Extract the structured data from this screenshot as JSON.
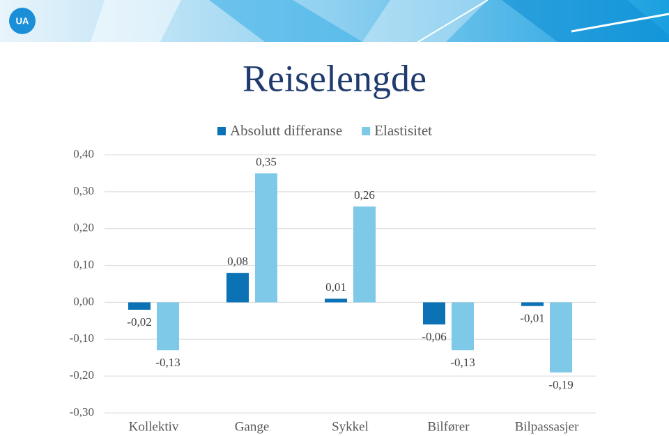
{
  "logo": "UA",
  "chart_data": {
    "type": "bar",
    "title": "Reiselengde",
    "categories": [
      "Kollektiv",
      "Gange",
      "Sykkel",
      "Bilfører",
      "Bilpassasjer"
    ],
    "series": [
      {
        "name": "Absolutt differanse",
        "color": "#0b72b5",
        "values": [
          -0.02,
          0.08,
          0.01,
          -0.06,
          -0.01
        ],
        "value_labels": [
          "-0,02",
          "0,08",
          "0,01",
          "-0,06",
          "-0,01"
        ]
      },
      {
        "name": "Elastisitet",
        "color": "#7dc9e7",
        "values": [
          -0.13,
          0.35,
          0.26,
          -0.13,
          -0.19
        ],
        "value_labels": [
          "-0,13",
          "0,35",
          "0,26",
          "-0,13",
          "-0,19"
        ]
      }
    ],
    "ylim": [
      -0.3,
      0.4
    ],
    "yticks": [
      {
        "value": -0.3,
        "label": "-0,30"
      },
      {
        "value": -0.2,
        "label": "-0,20"
      },
      {
        "value": -0.1,
        "label": "-0,10"
      },
      {
        "value": 0,
        "label": "0,00"
      },
      {
        "value": 0.1,
        "label": "0,10"
      },
      {
        "value": 0.2,
        "label": "0,20"
      },
      {
        "value": 0.3,
        "label": "0,30"
      },
      {
        "value": 0.4,
        "label": "0,40"
      }
    ],
    "grid": true,
    "legend": "top"
  }
}
